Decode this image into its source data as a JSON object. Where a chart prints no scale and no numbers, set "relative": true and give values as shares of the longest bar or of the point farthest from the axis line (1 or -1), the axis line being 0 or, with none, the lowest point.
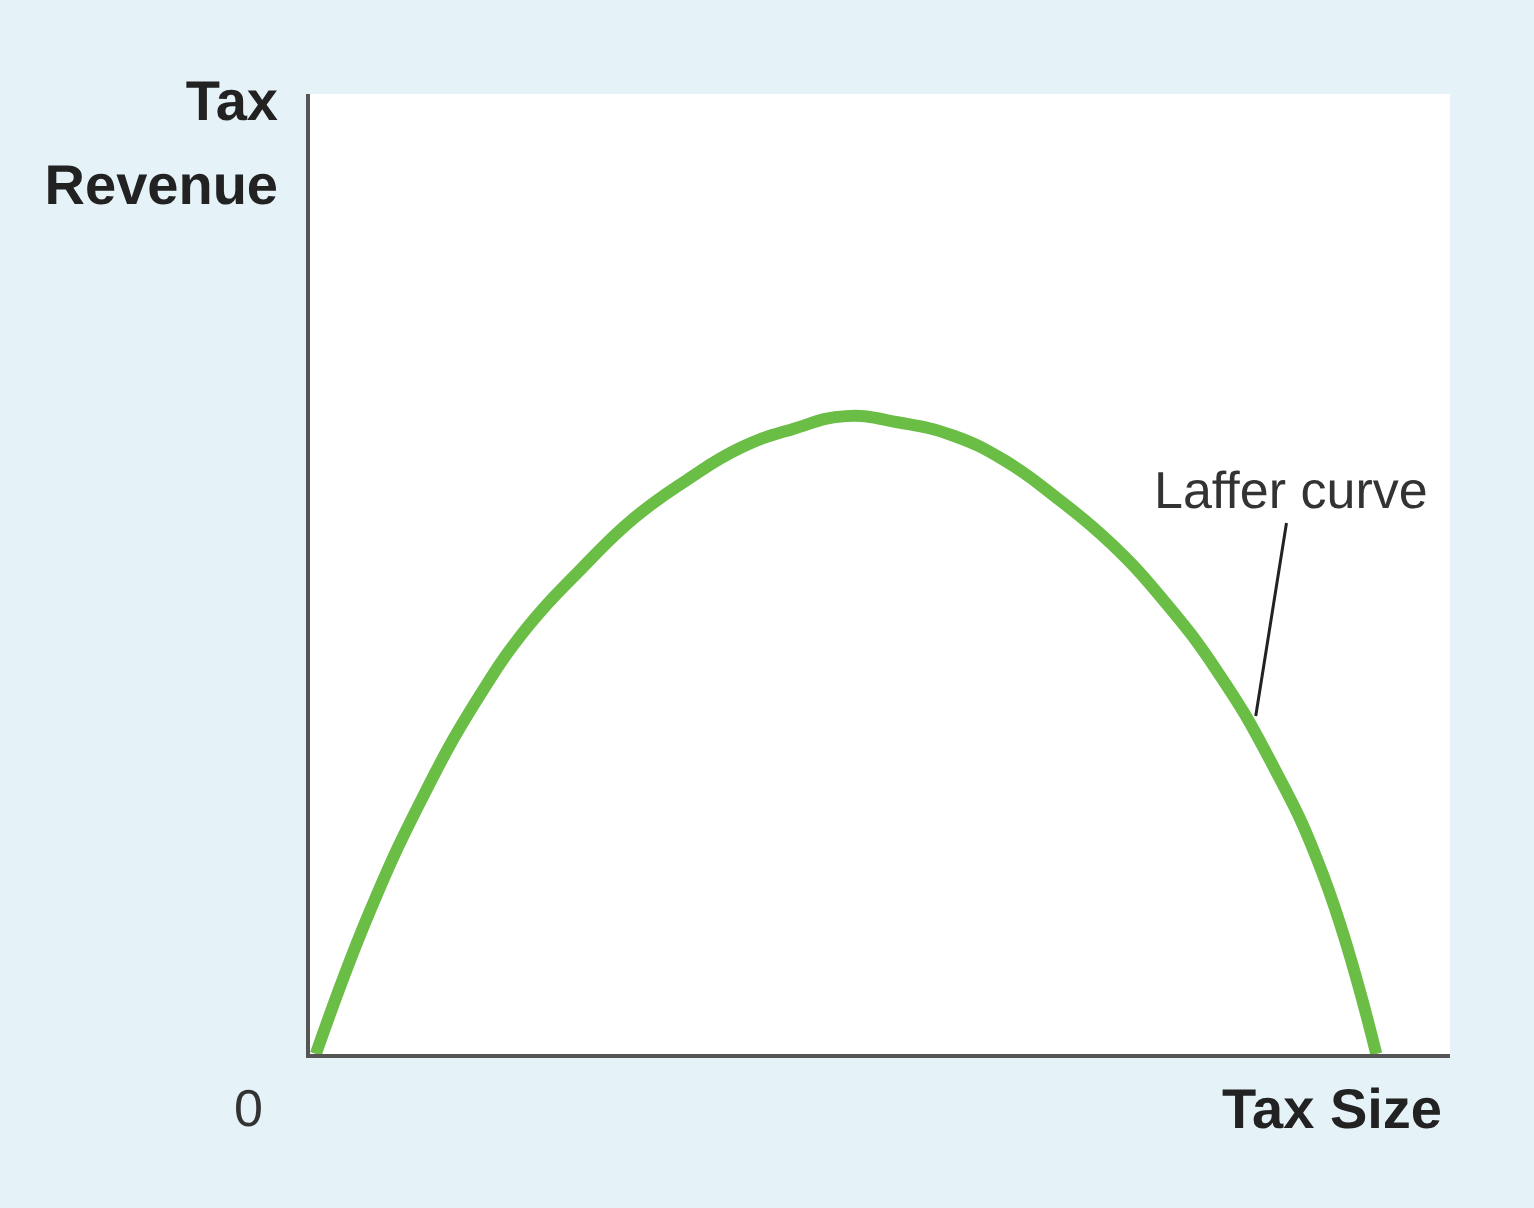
{
  "chart_data": {
    "type": "line",
    "relative": true,
    "categories": [
      null,
      null,
      null,
      null,
      null,
      null,
      null,
      null,
      null,
      null,
      null,
      null,
      null,
      null,
      null,
      null,
      null,
      null,
      null,
      null,
      null
    ],
    "series": [
      {
        "name": "Laffer curve",
        "color": "#6abd45",
        "values": [
          0,
          0.22,
          0.4,
          0.55,
          0.67,
          0.76,
          0.84,
          0.9,
          0.95,
          0.98,
          1.0,
          0.99,
          0.97,
          0.93,
          0.87,
          0.8,
          0.71,
          0.6,
          0.46,
          0.28,
          0
        ]
      }
    ],
    "xlabel": "Tax Size",
    "ylabel": "Tax Revenue",
    "annotations": [
      "0"
    ],
    "legend": false,
    "line_style": "solid"
  }
}
